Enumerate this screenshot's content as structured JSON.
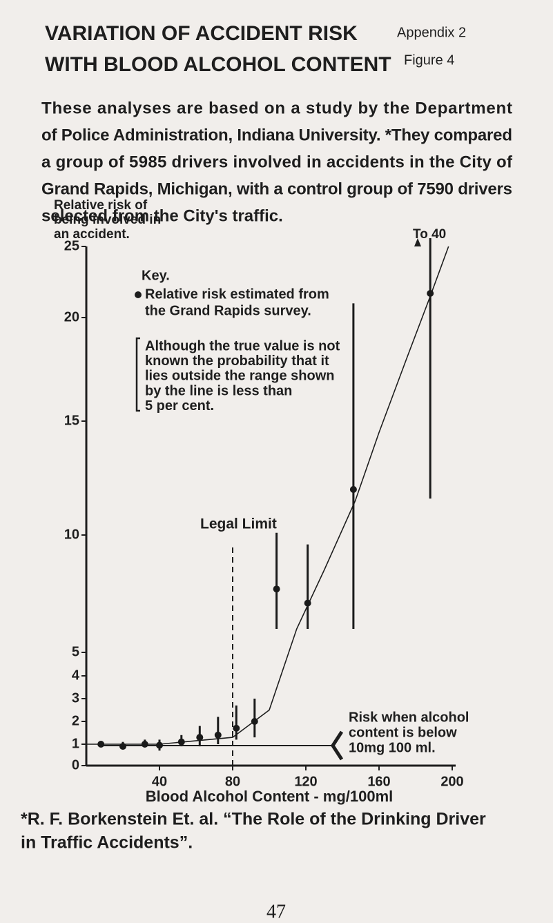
{
  "header": {
    "title_lines": [
      "VARIATION OF ACCIDENT RISK",
      "WITH BLOOD ALCOHOL CONTENT"
    ],
    "appendix": "Appendix 2",
    "figure": "Figure 4"
  },
  "paragraph": [
    "These analyses are based on a study by the Department",
    "of Police Administration, Indiana University. *They compared",
    "a group of 5985 drivers involved in accidents in the City of",
    "Grand Rapids, Michigan, with a control group of 7590 drivers",
    "selected from the City's traffic."
  ],
  "chart_data": {
    "type": "errorbar",
    "ylabel_lines": [
      "Relative risk of",
      "being involved in",
      "an accident."
    ],
    "xlabel": "Blood Alcohol Content - mg/100ml",
    "xlim": [
      0,
      200
    ],
    "xticks": [
      40,
      80,
      120,
      160,
      200
    ],
    "ylim": [
      0,
      25
    ],
    "yticks": [
      0,
      1,
      2,
      3,
      4,
      5,
      10,
      15,
      20,
      25
    ],
    "color": "#1a1a1a",
    "x": [
      8,
      20,
      32,
      40,
      52,
      62,
      72,
      82,
      92,
      104,
      121,
      146,
      188
    ],
    "values": [
      1.0,
      0.9,
      1.0,
      0.95,
      1.1,
      1.3,
      1.4,
      1.7,
      2.0,
      7.7,
      7.1,
      12,
      21.7
    ],
    "low": [
      0.9,
      0.8,
      0.9,
      0.7,
      0.9,
      0.9,
      1.0,
      1.2,
      1.3,
      6.0,
      6.0,
      6.0,
      11.6
    ],
    "high": [
      1.1,
      1.1,
      1.2,
      1.2,
      1.4,
      1.8,
      2.2,
      2.7,
      3.0,
      10.1,
      9.6,
      21,
      40
    ],
    "curve": {
      "x": [
        0,
        40,
        80,
        100,
        115,
        130,
        147,
        160,
        175,
        188,
        198
      ],
      "values": [
        1,
        1,
        1.3,
        2.5,
        6,
        8.5,
        11.5,
        14.5,
        18,
        21.5,
        25
      ]
    },
    "top_note": "To 40",
    "legal_limit": {
      "text": "Legal Limit",
      "x": 80
    },
    "risk_note": [
      "Risk when alcohol",
      "content is below",
      "10mg  100 ml."
    ],
    "key": {
      "title": "Key.",
      "dot_lines": [
        "Relative risk estimated from",
        "the Grand Rapids survey."
      ],
      "bracket_lines": [
        "Although the true value is not",
        "known the probability that it",
        "lies outside the range shown",
        "by the line is less than",
        "5 per cent."
      ]
    }
  },
  "footnote": [
    "*R. F. Borkenstein Et. al. “The Role of the Drinking Driver",
    "in Traffic Accidents”."
  ],
  "page_number": "47"
}
